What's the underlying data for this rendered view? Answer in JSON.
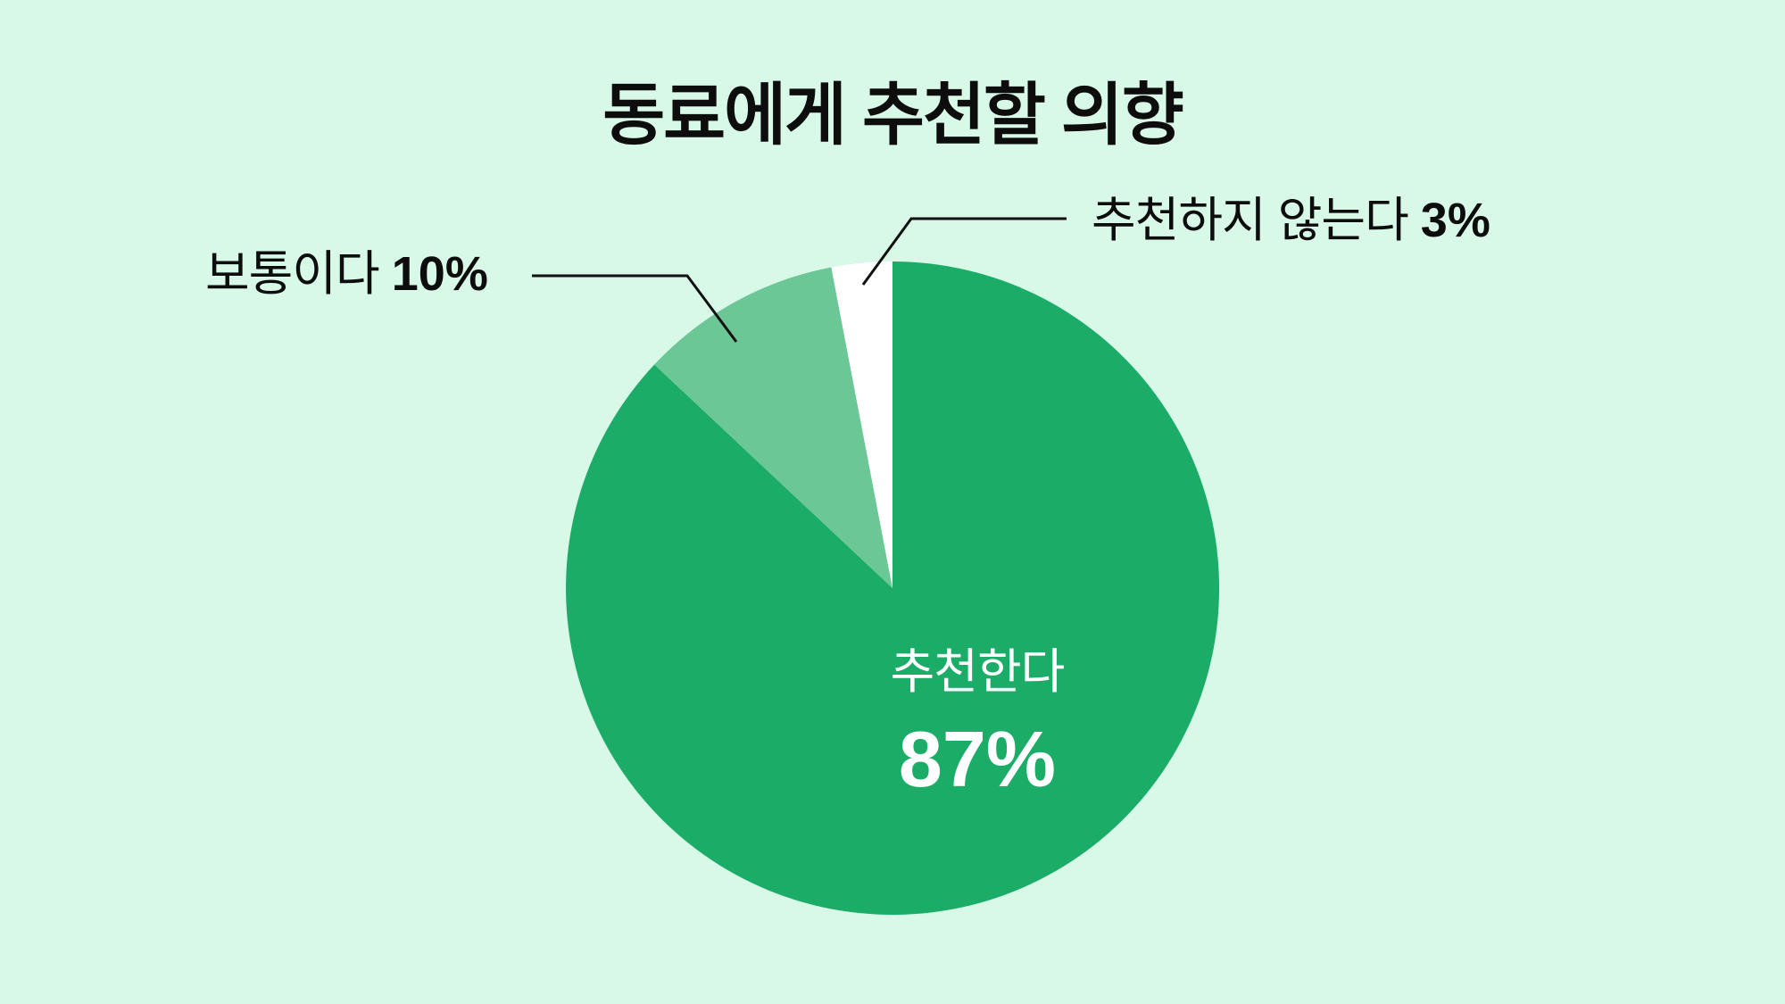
{
  "title": "동료에게 추천할 의향",
  "labels": {
    "positive": {
      "text": "추천한다",
      "value": "87%"
    },
    "neutral": {
      "text": "보통이다",
      "value": "10%"
    },
    "negative": {
      "text": "추천하지 않는다",
      "value": "3%"
    }
  },
  "colors": {
    "background": "#d8f8e8",
    "positive": "#1bad68",
    "neutral": "#6bc795",
    "negative": "#ffffff",
    "text": "#0d0d0d",
    "inside_text": "#ffffff",
    "leader_line": "#111111"
  },
  "chart_data": {
    "type": "pie",
    "title": "동료에게 추천할 의향",
    "slices": [
      {
        "label": "추천한다",
        "value": 87,
        "color": "#1bad68",
        "label_position": "inside"
      },
      {
        "label": "보통이다",
        "value": 10,
        "color": "#6bc795",
        "label_position": "callout-left"
      },
      {
        "label": "추천하지 않는다",
        "value": 3,
        "color": "#ffffff",
        "label_position": "callout-right"
      }
    ],
    "start_angle_deg": 0,
    "direction": "clockwise",
    "legend": "none",
    "label_style": "callout",
    "background": "#d8f8e8"
  }
}
